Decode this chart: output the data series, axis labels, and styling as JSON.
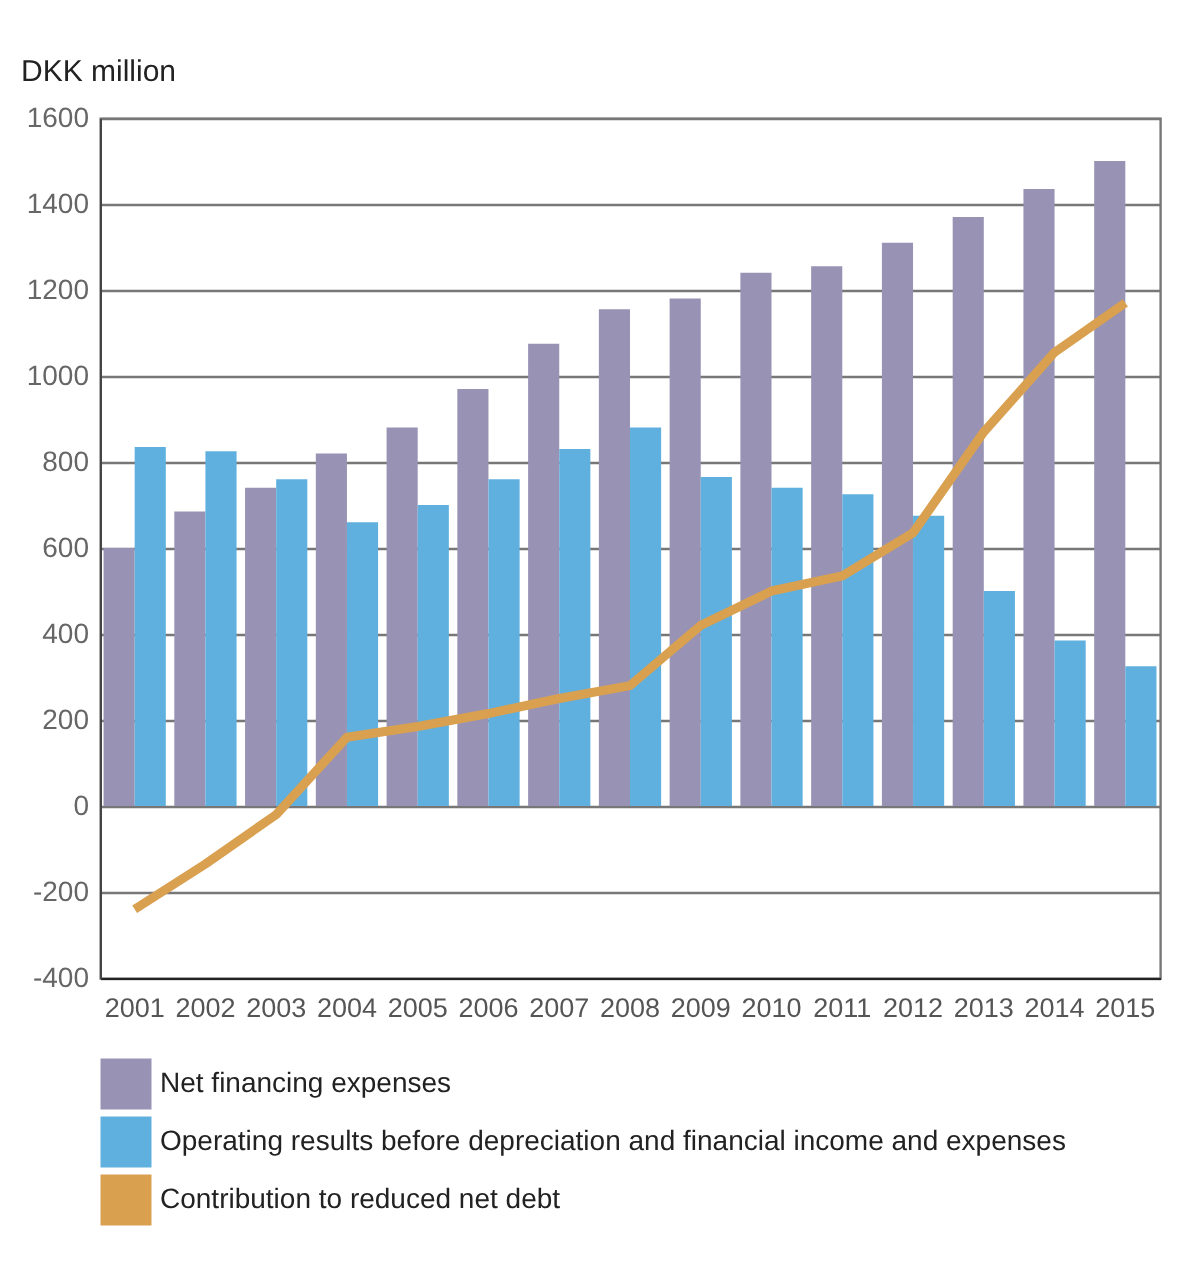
{
  "chart_data": {
    "type": "bar",
    "ylabel": "DKK million",
    "categories": [
      "2001",
      "2002",
      "2003",
      "2004",
      "2005",
      "2006",
      "2007",
      "2008",
      "2009",
      "2010",
      "2011",
      "2012",
      "2013",
      "2014",
      "2015"
    ],
    "series": [
      {
        "name": "Net financing expenses",
        "color": "#9893b4",
        "values": [
          600,
          685,
          740,
          820,
          880,
          970,
          1075,
          1155,
          1180,
          1240,
          1255,
          1310,
          1370,
          1435,
          1500
        ]
      },
      {
        "name": "Operating results before depreciation and financial income and expenses",
        "color": "#5fb0de",
        "values": [
          835,
          825,
          760,
          660,
          700,
          760,
          830,
          880,
          765,
          740,
          725,
          675,
          500,
          385,
          325
        ]
      },
      {
        "name": "Contribution to reduced net debt",
        "type": "line",
        "color": "#d9a050",
        "values": [
          -240,
          -135,
          -20,
          160,
          185,
          215,
          250,
          280,
          420,
          500,
          535,
          635,
          870,
          1055,
          1170
        ]
      }
    ],
    "ylim": [
      -400,
      1600
    ],
    "yticks": [
      -400,
      -200,
      0,
      200,
      400,
      600,
      800,
      1000,
      1200,
      1400,
      1600
    ],
    "grid": "y",
    "legend": "bottom",
    "marker": "none",
    "line_style": "solid"
  }
}
